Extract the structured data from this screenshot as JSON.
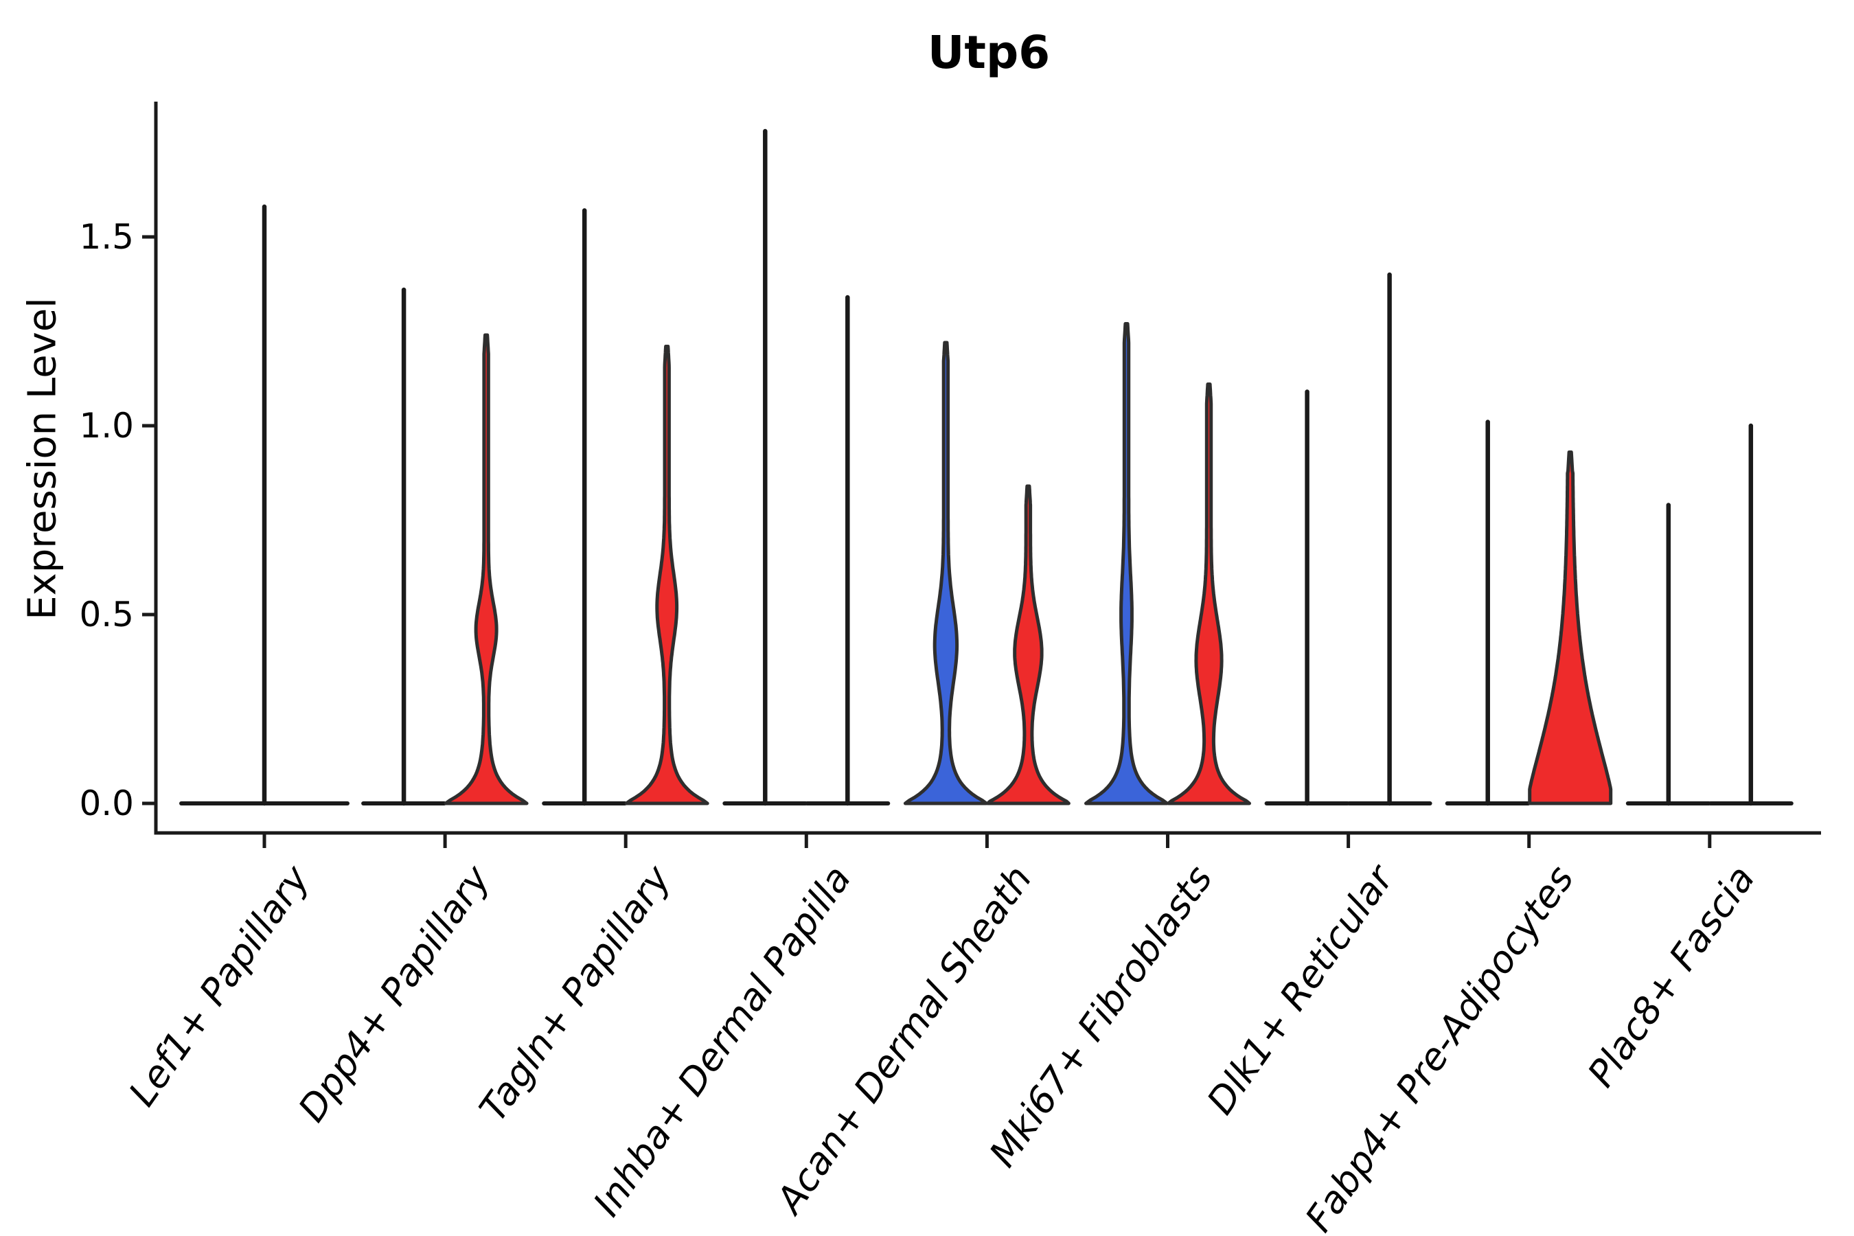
{
  "chart_data": {
    "type": "violin",
    "title": "Utp6",
    "ylabel": "Expression Level",
    "ylim": [
      0,
      1.86
    ],
    "yticks": [
      0.0,
      0.5,
      1.0,
      1.5
    ],
    "ytick_labels": [
      "0.0",
      "0.5",
      "1.0",
      "1.5"
    ],
    "grid": false,
    "legend": "none",
    "colors": {
      "red": "#ee2b2b",
      "blue": "#3b64d9",
      "outline": "#2e2e2e",
      "axis": "#1a1a1a",
      "text": "#000000",
      "background": "#ffffff"
    },
    "categories": [
      {
        "label": "Lef1+ Papillary",
        "violins": [
          {
            "side": "center",
            "fill": "none",
            "shape": "spike",
            "max": 1.58,
            "width": "full"
          }
        ]
      },
      {
        "label": "Dpp4+ Papillary",
        "violins": [
          {
            "side": "left",
            "fill": "none",
            "shape": "spike",
            "max": 1.36
          },
          {
            "side": "right",
            "fill": "red",
            "shape": "bulge",
            "max": 1.24,
            "bulge": {
              "center": 0.46,
              "lo": 0.3,
              "hi": 0.64,
              "width": 0.2
            }
          }
        ]
      },
      {
        "label": "Tagln+ Papillary",
        "violins": [
          {
            "side": "left",
            "fill": "none",
            "shape": "spike",
            "max": 1.57
          },
          {
            "side": "right",
            "fill": "red",
            "shape": "bulge",
            "max": 1.21,
            "bulge": {
              "center": 0.52,
              "lo": 0.3,
              "hi": 0.72,
              "width": 0.19
            }
          }
        ]
      },
      {
        "label": "Inhba+ Dermal Papilla",
        "violins": [
          {
            "side": "left",
            "fill": "none",
            "shape": "spike",
            "max": 1.78
          },
          {
            "side": "right",
            "fill": "none",
            "shape": "spike",
            "max": 1.34
          }
        ]
      },
      {
        "label": "Acan+ Dermal Sheath",
        "violins": [
          {
            "side": "left",
            "fill": "blue",
            "shape": "bulge",
            "max": 1.22,
            "bulge": {
              "center": 0.42,
              "lo": 0.17,
              "hi": 0.65,
              "width": 0.22
            }
          },
          {
            "side": "right",
            "fill": "red",
            "shape": "bulge",
            "max": 0.84,
            "bulge": {
              "center": 0.4,
              "lo": 0.18,
              "hi": 0.62,
              "width": 0.28
            }
          }
        ]
      },
      {
        "label": "Mki67+ Fibroblasts",
        "violins": [
          {
            "side": "left",
            "fill": "blue",
            "shape": "bulge",
            "max": 1.27,
            "bulge": {
              "center": 0.5,
              "lo": 0.25,
              "hi": 0.74,
              "width": 0.08
            }
          },
          {
            "side": "right",
            "fill": "red",
            "shape": "bulge",
            "max": 1.11,
            "bulge": {
              "center": 0.38,
              "lo": 0.16,
              "hi": 0.66,
              "width": 0.26
            }
          }
        ]
      },
      {
        "label": "Dlk1+ Reticular",
        "violins": [
          {
            "side": "left",
            "fill": "none",
            "shape": "spike",
            "max": 1.09
          },
          {
            "side": "right",
            "fill": "none",
            "shape": "spike",
            "max": 1.4
          }
        ]
      },
      {
        "label": "Fabp4+ Pre-Adipocytes",
        "violins": [
          {
            "side": "left",
            "fill": "none",
            "shape": "spike",
            "max": 1.01
          },
          {
            "side": "right",
            "fill": "red",
            "shape": "teardrop",
            "max": 0.93,
            "teardrop": {
              "scale": 0.3,
              "power": 1.4,
              "fill_top": 0.7
            }
          }
        ]
      },
      {
        "label": "Plac8+ Fascia",
        "violins": [
          {
            "side": "left",
            "fill": "none",
            "shape": "spike",
            "max": 0.79
          },
          {
            "side": "right",
            "fill": "none",
            "shape": "spike",
            "max": 1.0
          }
        ]
      }
    ]
  }
}
